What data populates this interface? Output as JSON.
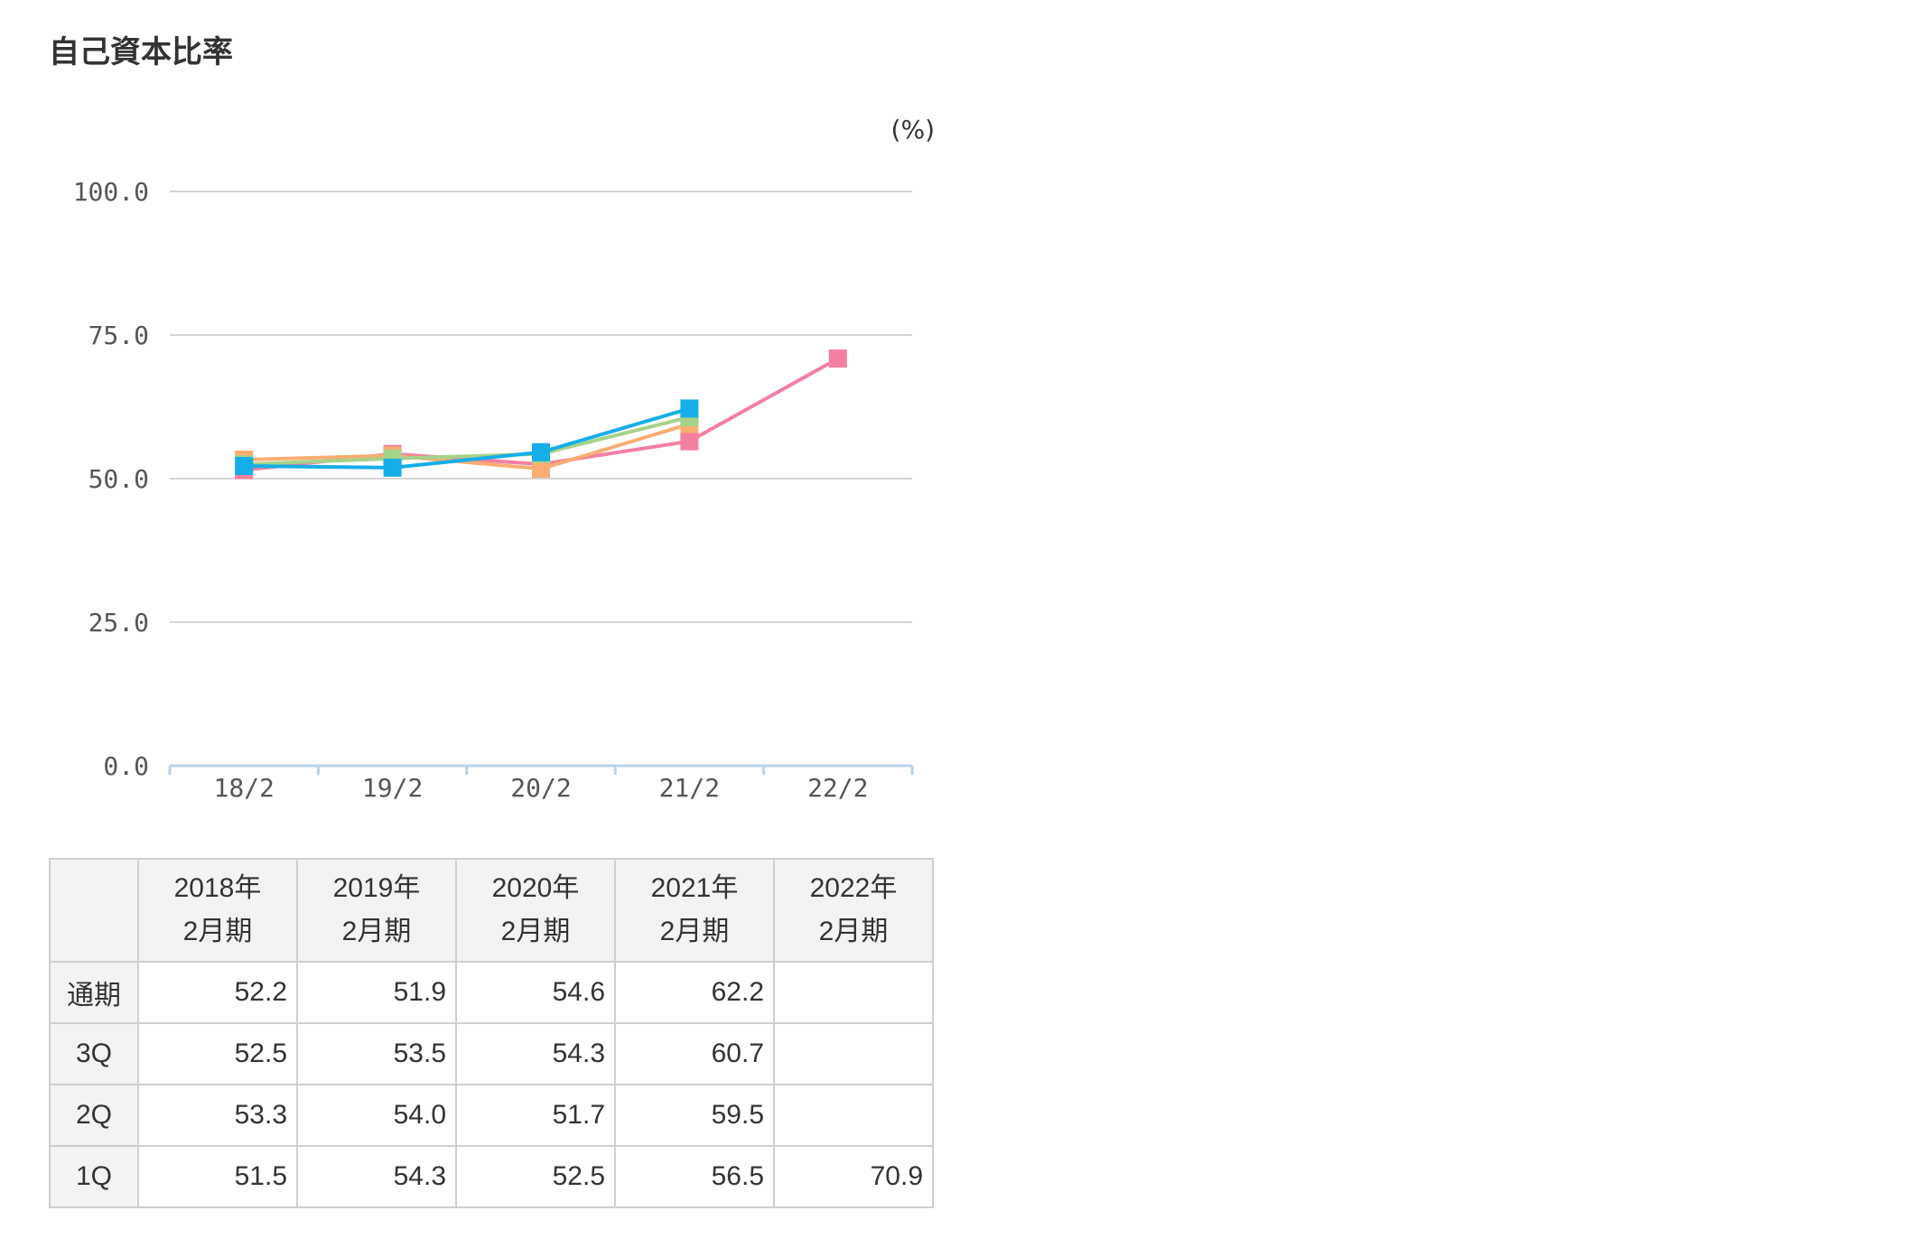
{
  "title": "自己資本比率",
  "chart_data": {
    "type": "line",
    "unit": "(%)",
    "categories": [
      "18/2",
      "19/2",
      "20/2",
      "21/2",
      "22/2"
    ],
    "ylim": [
      0,
      100
    ],
    "yticks": [
      "100.0",
      "75.0",
      "50.0",
      "25.0",
      "0.0"
    ],
    "grid": true,
    "series": [
      {
        "key": "1Q",
        "color": "#f47fa0",
        "values": [
          51.5,
          54.3,
          52.5,
          56.5,
          70.9
        ]
      },
      {
        "key": "2Q",
        "color": "#f9ad72",
        "values": [
          53.3,
          54.0,
          51.7,
          59.5,
          null
        ]
      },
      {
        "key": "3Q",
        "color": "#a6d38a",
        "values": [
          52.5,
          53.5,
          54.3,
          60.7,
          null
        ]
      },
      {
        "key": "通期",
        "color": "#16aee8",
        "values": [
          52.2,
          51.9,
          54.6,
          62.2,
          null
        ]
      }
    ]
  },
  "table": {
    "columns": [
      {
        "year": "2018年",
        "period": "2月期"
      },
      {
        "year": "2019年",
        "period": "2月期"
      },
      {
        "year": "2020年",
        "period": "2月期"
      },
      {
        "year": "2021年",
        "period": "2月期"
      },
      {
        "year": "2022年",
        "period": "2月期"
      }
    ],
    "rows": [
      {
        "label": "通期",
        "values": [
          "52.2",
          "51.9",
          "54.6",
          "62.2",
          ""
        ]
      },
      {
        "label": "3Q",
        "values": [
          "52.5",
          "53.5",
          "54.3",
          "60.7",
          ""
        ]
      },
      {
        "label": "2Q",
        "values": [
          "53.3",
          "54.0",
          "51.7",
          "59.5",
          ""
        ]
      },
      {
        "label": "1Q",
        "values": [
          "51.5",
          "54.3",
          "52.5",
          "56.5",
          "70.9"
        ]
      }
    ]
  }
}
